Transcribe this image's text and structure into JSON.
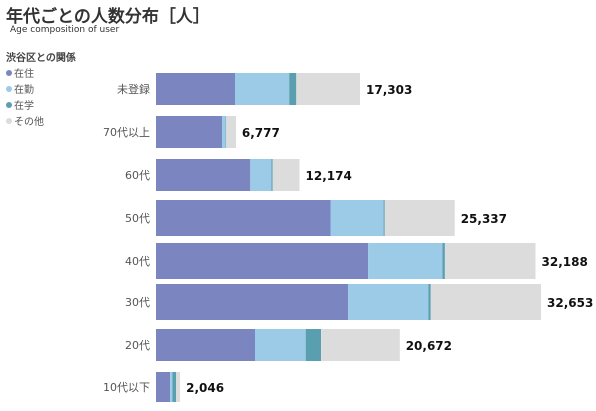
{
  "title": "年代ごとの人数分布［人］",
  "subtitle": "Age composition of user",
  "legend": {
    "title": "渋谷区との関係",
    "items": [
      {
        "label": "在住",
        "color": "#7b86c0"
      },
      {
        "label": "在勤",
        "color": "#9ccbe7"
      },
      {
        "label": "在学",
        "color": "#5a9fb0"
      },
      {
        "label": "その他",
        "color": "#dcdcdc"
      }
    ]
  },
  "chart_data": {
    "type": "bar",
    "orientation": "horizontal",
    "stacked": true,
    "categories": [
      "未登録",
      "70代以上",
      "60代",
      "50代",
      "40代",
      "30代",
      "20代",
      "10代以下"
    ],
    "totals": [
      "17,303",
      "6,777",
      "12,174",
      "25,337",
      "32,188",
      "32,653",
      "20,672",
      "2,046"
    ],
    "series": [
      {
        "name": "在住",
        "color": "#7b86c0",
        "values": [
          6700,
          5600,
          8000,
          14800,
          18000,
          16300,
          8400,
          1200
        ]
      },
      {
        "name": "在勤",
        "color": "#9ccbe7",
        "values": [
          4600,
          300,
          1800,
          4500,
          6300,
          6800,
          4300,
          200
        ]
      },
      {
        "name": "在学",
        "color": "#5a9fb0",
        "values": [
          603,
          50,
          100,
          100,
          200,
          200,
          1300,
          300
        ]
      },
      {
        "name": "その他",
        "color": "#dcdcdc",
        "values": [
          5400,
          827,
          2274,
          5937,
          7688,
          9353,
          6672,
          346
        ]
      }
    ]
  }
}
